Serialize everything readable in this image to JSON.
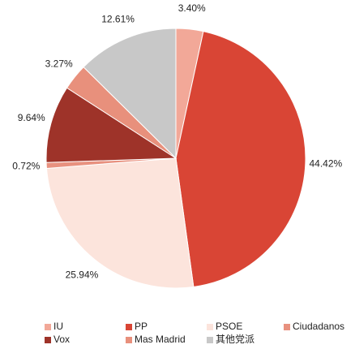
{
  "chart_data": {
    "type": "pie",
    "categories": [
      "IU",
      "PP",
      "PSOE",
      "Ciudadanos",
      "Vox",
      "Mas Madrid",
      "其他党派"
    ],
    "values": [
      3.4,
      44.42,
      25.94,
      0.72,
      9.64,
      3.27,
      12.61
    ],
    "value_labels": [
      "3.40%",
      "44.42%",
      "25.94%",
      "0.72%",
      "9.64%",
      "3.27%",
      "12.61%"
    ],
    "colors": [
      "#f2a898",
      "#d94535",
      "#fce4dc",
      "#e8917f",
      "#9e3329",
      "#e8907c",
      "#c8c8c8"
    ],
    "legend": "bottom"
  }
}
